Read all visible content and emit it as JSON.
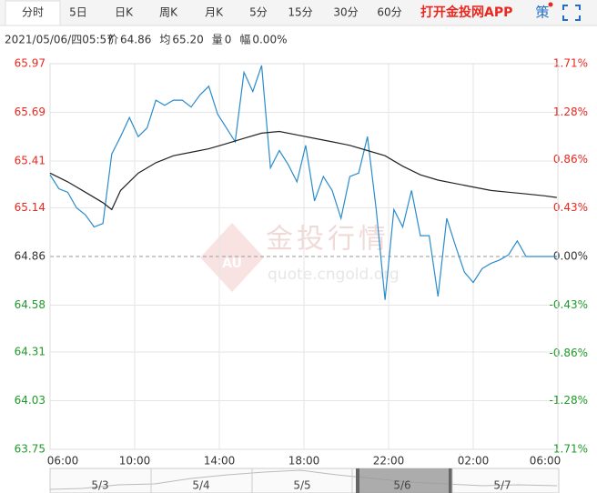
{
  "toolbar": {
    "tabs": [
      "分时",
      "5日",
      "日K",
      "周K",
      "月K",
      "5分",
      "15分",
      "30分",
      "60分"
    ],
    "active": 0,
    "app_link": "打开金投网APP",
    "strategy": "策"
  },
  "info": {
    "datetime": "2021/05/06/四05:57",
    "fields": [
      {
        "label": "价",
        "value": "64.86"
      },
      {
        "label": "均",
        "value": "65.20"
      },
      {
        "label": "量",
        "value": "0"
      },
      {
        "label": "幅",
        "value": "0.00%"
      }
    ]
  },
  "watermark": {
    "logo": "AU",
    "title": "金投行情",
    "url": "quote.cngold.org"
  },
  "navigator": {
    "labels": [
      "5/3",
      "5/4",
      "5/5",
      "5/6",
      "5/7"
    ],
    "selected": 3
  },
  "chart_data": {
    "type": "line",
    "xlim": [
      0,
      1440
    ],
    "xticks": [
      {
        "value": 0,
        "label": "06:00"
      },
      {
        "value": 240,
        "label": "10:00"
      },
      {
        "value": 480,
        "label": "14:00"
      },
      {
        "value": 720,
        "label": "18:00"
      },
      {
        "value": 960,
        "label": "22:00"
      },
      {
        "value": 1200,
        "label": "02:00"
      },
      {
        "value": 1440,
        "label": "06:00"
      }
    ],
    "ylim": [
      63.75,
      65.97
    ],
    "yticks": [
      65.97,
      65.69,
      65.41,
      65.14,
      64.86,
      64.58,
      64.31,
      64.03,
      63.75
    ],
    "y2lim": [
      -1.71,
      1.71
    ],
    "y2ticks": [
      {
        "value": 1.71,
        "label": "1.71%"
      },
      {
        "value": 1.28,
        "label": "1.28%"
      },
      {
        "value": 0.86,
        "label": "0.86%"
      },
      {
        "value": 0.43,
        "label": "0.43%"
      },
      {
        "value": 0,
        "label": "0.00%"
      },
      {
        "value": -0.43,
        "label": "-0.43%"
      },
      {
        "value": -0.86,
        "label": "-0.86%"
      },
      {
        "value": -1.28,
        "label": "-1.28%"
      },
      {
        "value": -1.71,
        "label": "-1.71%"
      }
    ],
    "reference": 64.86,
    "up_color": "#e8281f",
    "down_color": "#1f9a2a",
    "flat_color": "#333333",
    "grid": true,
    "series": [
      {
        "color": "#2a8ccc",
        "x": [
          0,
          25,
          50,
          75,
          100,
          125,
          150,
          175,
          200,
          225,
          250,
          275,
          300,
          325,
          350,
          375,
          400,
          425,
          450,
          475,
          500,
          525,
          550,
          575,
          600,
          625,
          650,
          675,
          700,
          725,
          750,
          775,
          800,
          825,
          850,
          875,
          900,
          925,
          950,
          975,
          1000,
          1025,
          1050,
          1075,
          1100,
          1125,
          1150,
          1175,
          1200,
          1225,
          1250,
          1275,
          1300,
          1325,
          1350,
          1375,
          1400,
          1437
        ],
        "values": [
          65.33,
          65.25,
          65.23,
          65.14,
          65.1,
          65.03,
          65.05,
          65.45,
          65.55,
          65.66,
          65.55,
          65.6,
          65.76,
          65.73,
          65.76,
          65.76,
          65.72,
          65.79,
          65.84,
          65.68,
          65.6,
          65.52,
          65.92,
          65.81,
          65.96,
          65.37,
          65.47,
          65.39,
          65.29,
          65.5,
          65.18,
          65.32,
          65.24,
          65.08,
          65.32,
          65.34,
          65.55,
          65.13,
          64.61,
          65.13,
          65.03,
          65.24,
          64.98,
          64.98,
          64.63,
          65.08,
          64.92,
          64.77,
          64.71,
          64.79,
          64.82,
          64.84,
          64.87,
          64.95,
          64.86,
          64.86,
          64.86,
          64.86
        ]
      },
      {
        "color": "#222222",
        "x": [
          0,
          50,
          100,
          150,
          175,
          200,
          250,
          300,
          350,
          400,
          450,
          500,
          550,
          600,
          650,
          700,
          750,
          800,
          850,
          900,
          950,
          1000,
          1050,
          1100,
          1150,
          1200,
          1250,
          1300,
          1350,
          1400,
          1437
        ],
        "values": [
          65.34,
          65.29,
          65.23,
          65.17,
          65.13,
          65.24,
          65.34,
          65.4,
          65.44,
          65.46,
          65.48,
          65.51,
          65.54,
          65.57,
          65.58,
          65.56,
          65.54,
          65.52,
          65.5,
          65.47,
          65.44,
          65.38,
          65.33,
          65.3,
          65.28,
          65.26,
          65.24,
          65.23,
          65.22,
          65.21,
          65.2
        ]
      }
    ]
  }
}
